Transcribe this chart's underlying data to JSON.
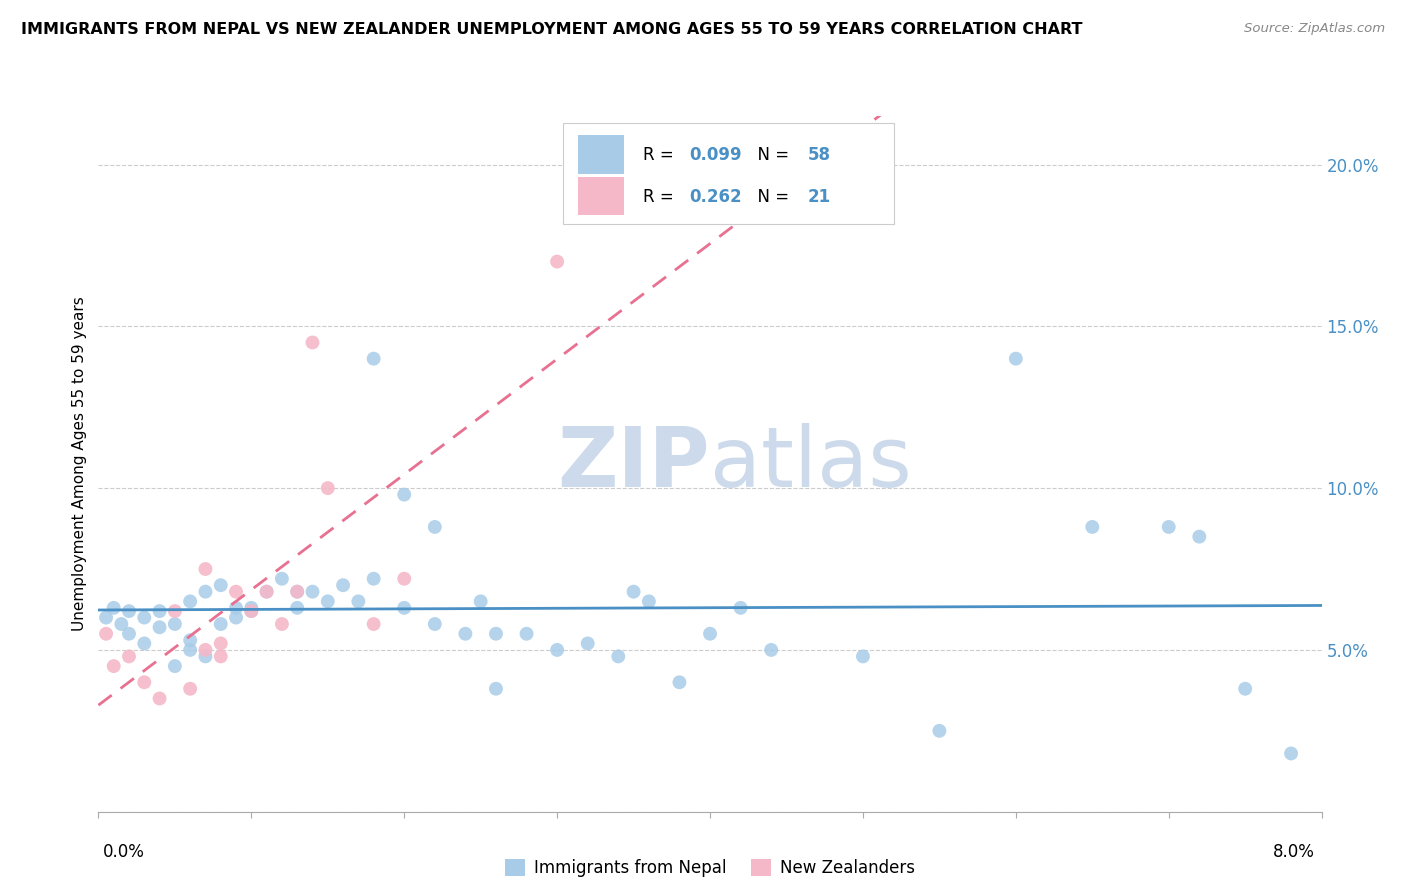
{
  "title": "IMMIGRANTS FROM NEPAL VS NEW ZEALANDER UNEMPLOYMENT AMONG AGES 55 TO 59 YEARS CORRELATION CHART",
  "source": "Source: ZipAtlas.com",
  "ylabel": "Unemployment Among Ages 55 to 59 years",
  "yticks": [
    0.0,
    0.05,
    0.1,
    0.15,
    0.2
  ],
  "ytick_labels": [
    "",
    "5.0%",
    "10.0%",
    "15.0%",
    "20.0%"
  ],
  "xlim": [
    0.0,
    0.08
  ],
  "ylim": [
    0.0,
    0.215
  ],
  "legend1_R": "0.099",
  "legend1_N": "58",
  "legend2_R": "0.262",
  "legend2_N": "21",
  "legend1_color": "#a8cce8",
  "legend2_color": "#f4b8c8",
  "trendline1_color": "#4a90c4",
  "trendline2_color": "#e87090",
  "watermark_color": "#ccdaeb",
  "nepal_x": [
    0.0005,
    0.001,
    0.0015,
    0.002,
    0.002,
    0.003,
    0.003,
    0.004,
    0.004,
    0.005,
    0.005,
    0.006,
    0.006,
    0.006,
    0.007,
    0.007,
    0.008,
    0.008,
    0.009,
    0.009,
    0.01,
    0.01,
    0.011,
    0.012,
    0.013,
    0.013,
    0.014,
    0.015,
    0.016,
    0.017,
    0.018,
    0.018,
    0.02,
    0.02,
    0.022,
    0.022,
    0.024,
    0.025,
    0.026,
    0.026,
    0.028,
    0.03,
    0.032,
    0.034,
    0.035,
    0.036,
    0.038,
    0.04,
    0.042,
    0.044,
    0.05,
    0.055,
    0.06,
    0.065,
    0.07,
    0.072,
    0.075,
    0.078
  ],
  "nepal_y": [
    0.06,
    0.063,
    0.058,
    0.055,
    0.062,
    0.052,
    0.06,
    0.057,
    0.062,
    0.058,
    0.045,
    0.05,
    0.053,
    0.065,
    0.048,
    0.068,
    0.07,
    0.058,
    0.06,
    0.063,
    0.063,
    0.062,
    0.068,
    0.072,
    0.068,
    0.063,
    0.068,
    0.065,
    0.07,
    0.065,
    0.072,
    0.14,
    0.063,
    0.098,
    0.058,
    0.088,
    0.055,
    0.065,
    0.055,
    0.038,
    0.055,
    0.05,
    0.052,
    0.048,
    0.068,
    0.065,
    0.04,
    0.055,
    0.063,
    0.05,
    0.048,
    0.025,
    0.14,
    0.088,
    0.088,
    0.085,
    0.038,
    0.018
  ],
  "nz_x": [
    0.0005,
    0.001,
    0.002,
    0.003,
    0.004,
    0.005,
    0.006,
    0.007,
    0.007,
    0.008,
    0.008,
    0.009,
    0.01,
    0.011,
    0.012,
    0.013,
    0.014,
    0.015,
    0.018,
    0.02,
    0.03
  ],
  "nz_y": [
    0.055,
    0.045,
    0.048,
    0.04,
    0.035,
    0.062,
    0.038,
    0.05,
    0.075,
    0.048,
    0.052,
    0.068,
    0.062,
    0.068,
    0.058,
    0.068,
    0.145,
    0.1,
    0.058,
    0.072,
    0.17
  ]
}
